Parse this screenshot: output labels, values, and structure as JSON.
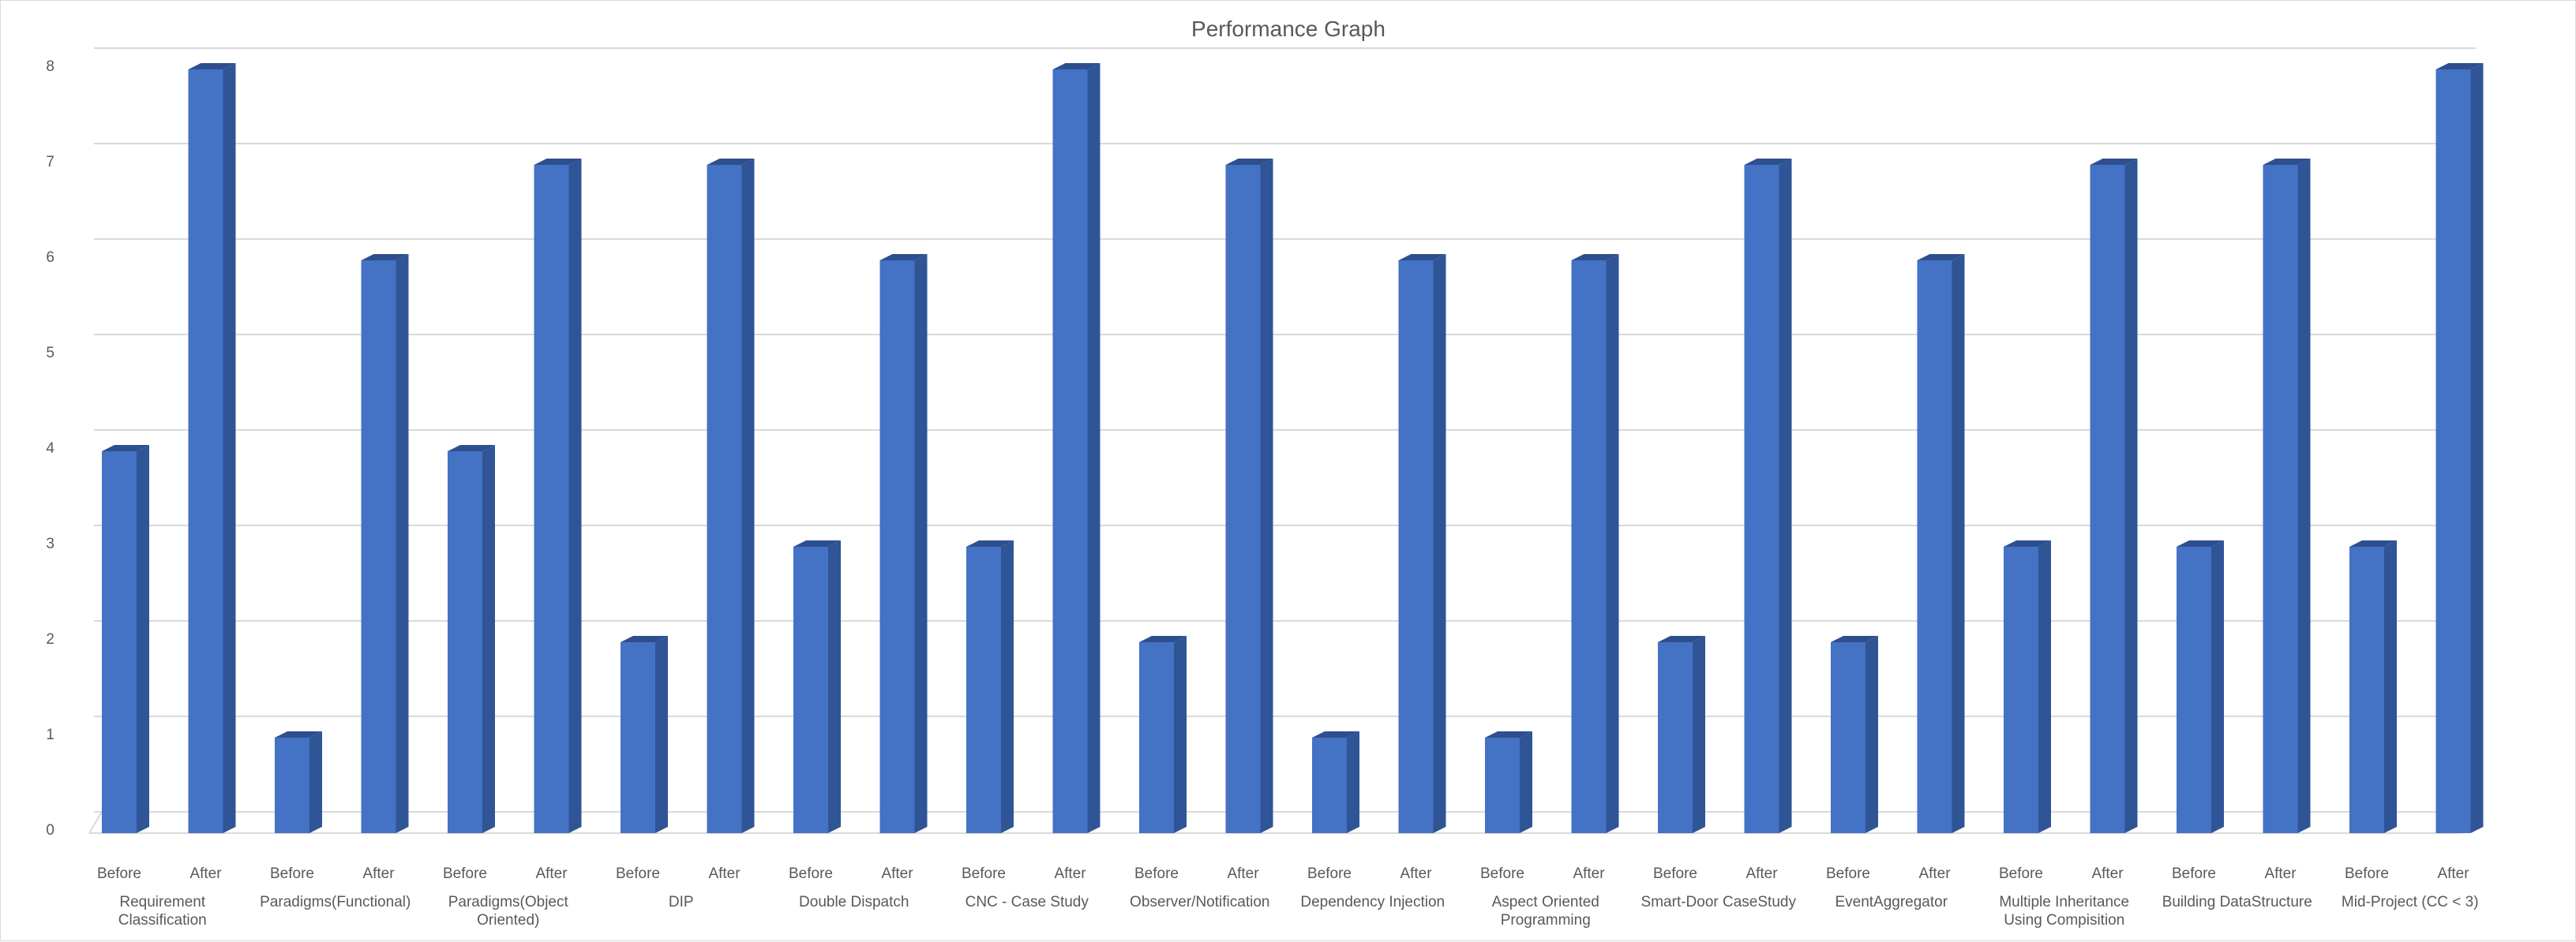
{
  "chart_data": {
    "type": "bar",
    "title": "Performance Graph",
    "xlabel": "",
    "ylabel": "",
    "ylim": [
      0,
      8
    ],
    "yticks": [
      0,
      1,
      2,
      3,
      4,
      5,
      6,
      7,
      8
    ],
    "grid": true,
    "legend": "none",
    "style": "3d-column",
    "colors": {
      "front": "#4472c4",
      "side": "#2f5597",
      "top": "#2e4f8f",
      "grid": "#d9d9d9",
      "text": "#595959"
    },
    "groups": [
      {
        "label": [
          "Requirement",
          "Classification"
        ],
        "bars": [
          {
            "label": "Before",
            "value": 4
          },
          {
            "label": "After",
            "value": 8
          }
        ]
      },
      {
        "label": [
          "Paradigms(Functional)"
        ],
        "bars": [
          {
            "label": "Before",
            "value": 1
          },
          {
            "label": "After",
            "value": 6
          }
        ]
      },
      {
        "label": [
          "Paradigms(Object",
          "Oriented)"
        ],
        "bars": [
          {
            "label": "Before",
            "value": 4
          },
          {
            "label": "After",
            "value": 7
          }
        ]
      },
      {
        "label": [
          "DIP"
        ],
        "bars": [
          {
            "label": "Before",
            "value": 2
          },
          {
            "label": "After",
            "value": 7
          }
        ]
      },
      {
        "label": [
          "Double Dispatch"
        ],
        "bars": [
          {
            "label": "Before",
            "value": 3
          },
          {
            "label": "After",
            "value": 6
          }
        ]
      },
      {
        "label": [
          "CNC - Case Study"
        ],
        "bars": [
          {
            "label": "Before",
            "value": 3
          },
          {
            "label": "After",
            "value": 8
          }
        ]
      },
      {
        "label": [
          "Observer/Notification"
        ],
        "bars": [
          {
            "label": "Before",
            "value": 2
          },
          {
            "label": "After",
            "value": 7
          }
        ]
      },
      {
        "label": [
          "Dependency Injection"
        ],
        "bars": [
          {
            "label": "Before",
            "value": 1
          },
          {
            "label": "After",
            "value": 6
          }
        ]
      },
      {
        "label": [
          "Aspect Oriented",
          "Programming"
        ],
        "bars": [
          {
            "label": "Before",
            "value": 1
          },
          {
            "label": "After",
            "value": 6
          }
        ]
      },
      {
        "label": [
          "Smart-Door CaseStudy"
        ],
        "bars": [
          {
            "label": "Before",
            "value": 2
          },
          {
            "label": "After",
            "value": 7
          }
        ]
      },
      {
        "label": [
          "EventAggregator"
        ],
        "bars": [
          {
            "label": "Before",
            "value": 2
          },
          {
            "label": "After",
            "value": 6
          }
        ]
      },
      {
        "label": [
          "Multiple Inheritance",
          "Using Compisition"
        ],
        "bars": [
          {
            "label": "Before",
            "value": 3
          },
          {
            "label": "After",
            "value": 7
          }
        ]
      },
      {
        "label": [
          "Building DataStructure"
        ],
        "bars": [
          {
            "label": "Before",
            "value": 3
          },
          {
            "label": "After",
            "value": 7
          }
        ]
      },
      {
        "label": [
          "Mid-Project (CC < 3)"
        ],
        "bars": [
          {
            "label": "Before",
            "value": 3
          },
          {
            "label": "After",
            "value": 8
          }
        ]
      }
    ]
  }
}
